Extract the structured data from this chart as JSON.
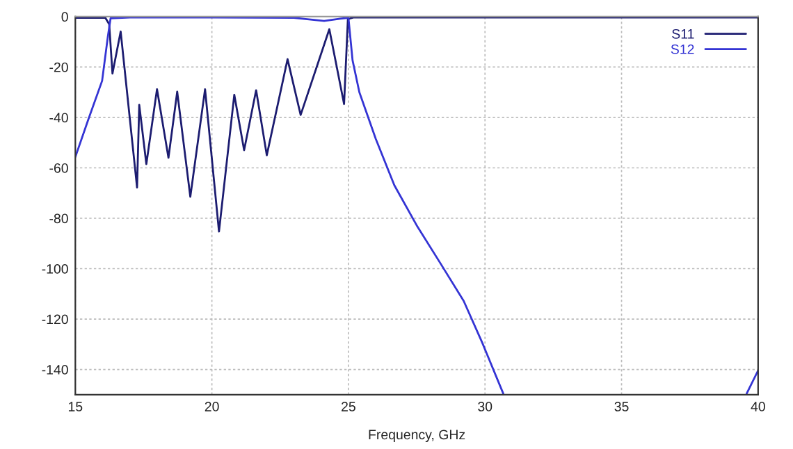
{
  "chart_data": {
    "type": "line",
    "xlabel": "Frequency, GHz",
    "xlim": [
      15,
      40
    ],
    "xticks": [
      15,
      20,
      25,
      30,
      35,
      40
    ],
    "ylim": [
      -150,
      0
    ],
    "yticks": [
      0,
      -20,
      -40,
      -60,
      -80,
      -100,
      -120,
      -140
    ],
    "grid": true,
    "legend": "top right",
    "line_style": "solid",
    "marker": "none",
    "series": [
      {
        "name": "S11",
        "color": "#1c1c70",
        "x": [
          15,
          16.1,
          16.24,
          16.36,
          16.66,
          17.26,
          17.34,
          17.6,
          17.99,
          18.41,
          18.73,
          19.21,
          19.75,
          20.26,
          20.82,
          21.18,
          21.62,
          22.01,
          22.77,
          23.25,
          24.3,
          24.84,
          24.98,
          25.2,
          40
        ],
        "values": [
          -0.5,
          -0.5,
          -3,
          -22.6,
          -5.9,
          -67.8,
          -35,
          -58.5,
          -28.8,
          -56,
          -29.8,
          -71.5,
          -28.8,
          -85.3,
          -31,
          -53,
          -29.2,
          -55,
          -16.9,
          -39,
          -5,
          -34.7,
          -1,
          -0.3,
          -0.3
        ]
      },
      {
        "name": "S12",
        "color": "#3434d4",
        "x": [
          15,
          15.47,
          15.98,
          16.19,
          16.29,
          17,
          20,
          23,
          24.11,
          24.7,
          25,
          25.15,
          25.4,
          26.0,
          26.68,
          27.53,
          28.38,
          29.22,
          29.9,
          30.67,
          35,
          39.58,
          40
        ],
        "values": [
          -55.7,
          -41,
          -25.5,
          -8,
          -0.7,
          -0.3,
          -0.3,
          -0.5,
          -1.7,
          -0.8,
          -0.5,
          -17.3,
          -30,
          -48.5,
          -66.9,
          -83.4,
          -98.1,
          -112.8,
          -129.4,
          -149.6,
          null,
          -149.6,
          -140.4
        ]
      }
    ]
  }
}
